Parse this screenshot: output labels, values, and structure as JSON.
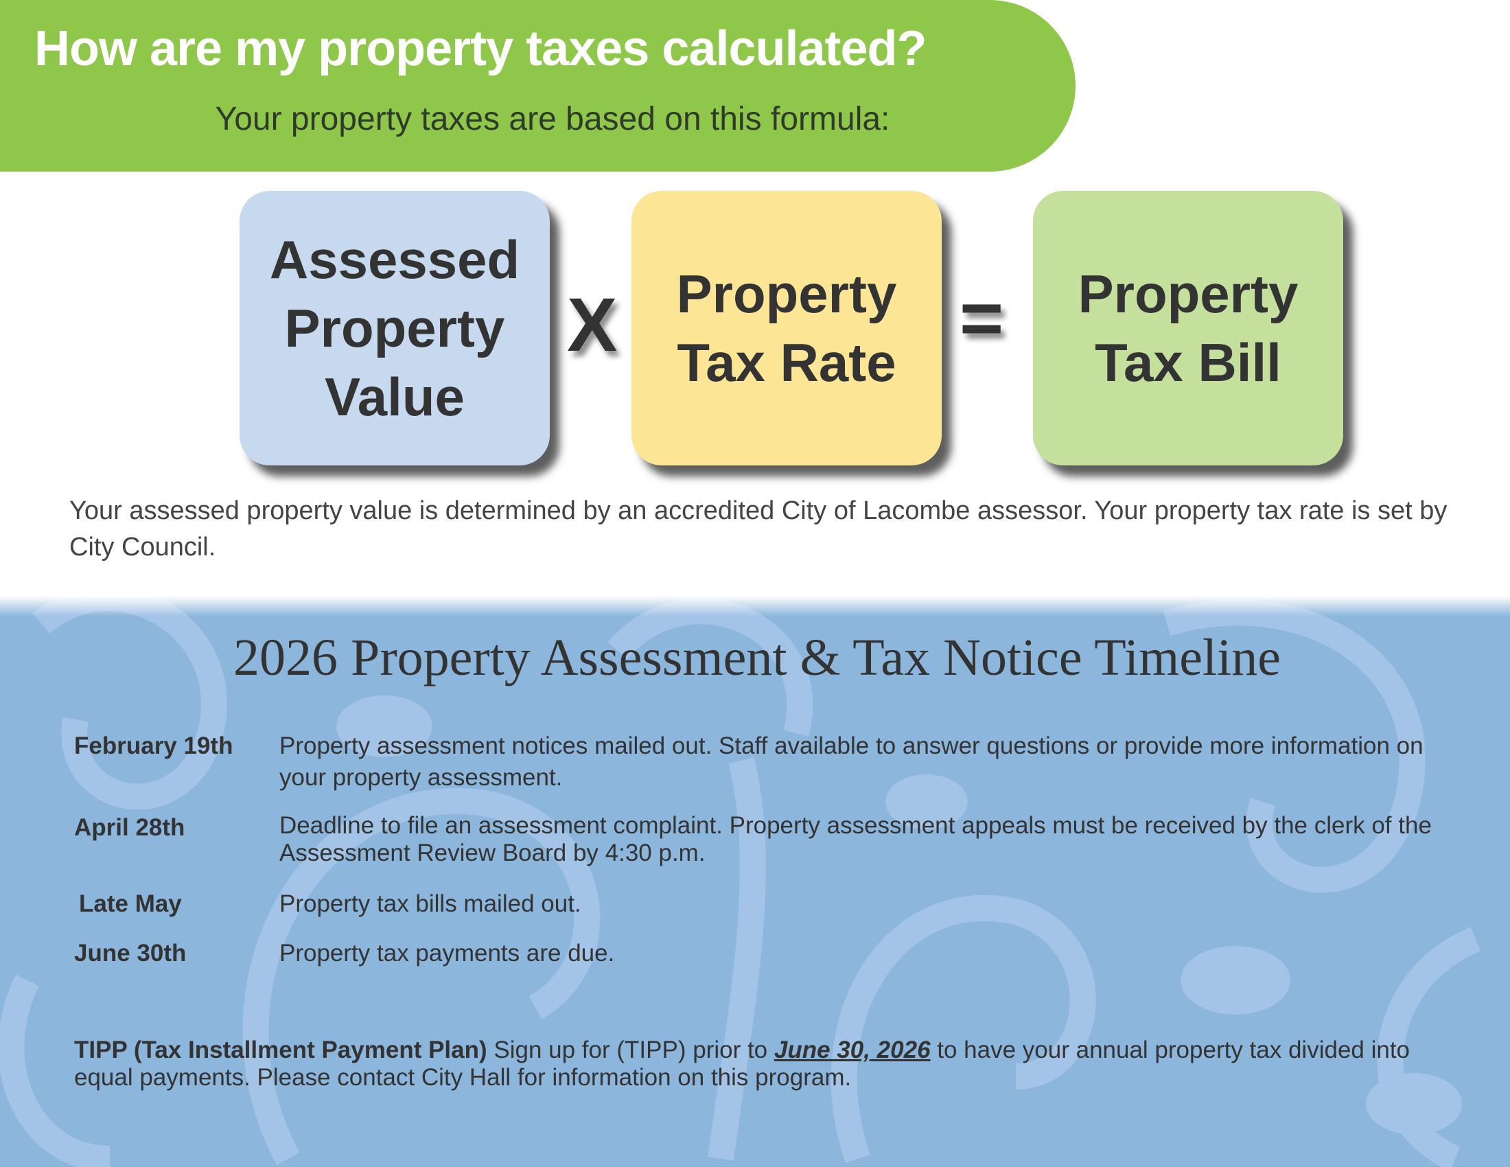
{
  "header": {
    "title": "How are my property taxes calculated?",
    "subtitle": "Your property taxes are based on this formula:"
  },
  "formula": {
    "box1_lines": [
      "Assessed",
      "Property",
      "Value"
    ],
    "operator_multiply": "X",
    "box2_lines": [
      "Property",
      "Tax Rate"
    ],
    "operator_equals": "=",
    "box3_lines": [
      "Property",
      "Tax Bill"
    ],
    "colors": {
      "banner": "#8fc74b",
      "box1": "#c6d9ee",
      "box2": "#fde596",
      "box3": "#c5e09d",
      "band": "#8cb6db"
    }
  },
  "explanation": "Your assessed property value is determined by an accredited City of Lacombe assessor. Your property tax rate is set by City Council.",
  "timeline": {
    "title": "2026 Property Assessment & Tax Notice Timeline",
    "items": [
      {
        "date": "February 19th",
        "text": "Property assessment notices mailed out.  Staff available to answer questions or provide more information on your property assessment."
      },
      {
        "date": "April 28th",
        "text": "Deadline to file an assessment complaint. Property assessment appeals must be received by the clerk of the Assessment Review Board by 4:30 p.m."
      },
      {
        "date": "Late May",
        "text": "Property tax bills mailed out."
      },
      {
        "date": "June 30th",
        "text": "Property tax payments are due."
      }
    ]
  },
  "tipp": {
    "label": "TIPP (Tax Installment Payment Plan)",
    "text_before": " Sign up for (TIPP) prior to ",
    "date": "June 30, 2026",
    "text_after": " to have your annual property tax divided into equal payments.  Please contact City Hall for information on this program."
  }
}
